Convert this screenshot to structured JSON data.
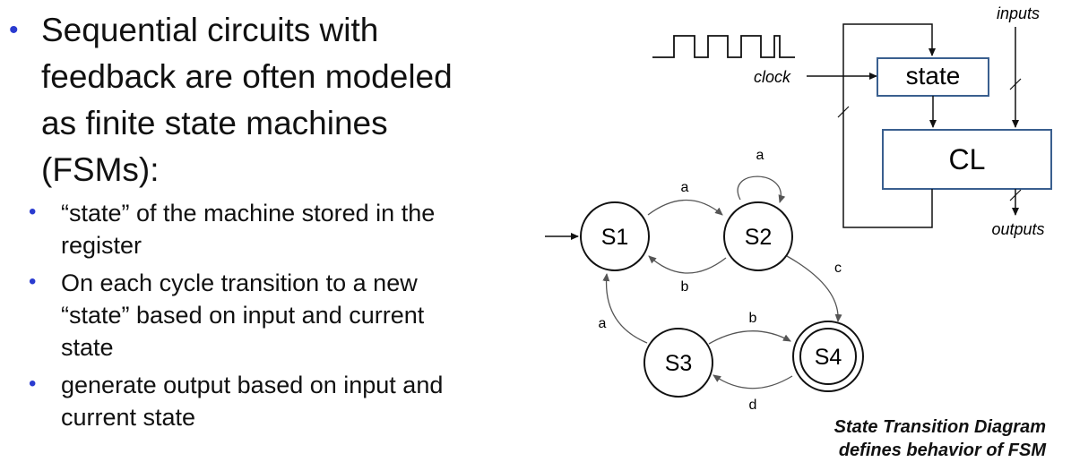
{
  "bullets": {
    "main": "Sequential circuits with\nfeedback are often modeled\nas finite state machines\n(FSMs):",
    "sub": [
      "“state” of the machine stored in the\nregister",
      "On each cycle transition to a new\n“state” based on input and current\nstate",
      "generate output based on input and\ncurrent state"
    ]
  },
  "circuit": {
    "inputs_label": "inputs",
    "clock_label": "clock",
    "state_label": "state",
    "cl_label": "CL",
    "outputs_label": "outputs"
  },
  "fsm": {
    "states": [
      "S1",
      "S2",
      "S3",
      "S4"
    ],
    "transitions": {
      "s1_s2": "a",
      "s2_s2": "a",
      "s2_s1": "b",
      "s2_s4": "c",
      "s3_s1": "a",
      "s3_s4": "b",
      "s4_s3": "d"
    }
  },
  "caption": "State Transition Diagram\ndefines behavior of FSM",
  "colors": {
    "bullet": "#2a3bd0",
    "box_stroke": "#3a5f8f"
  }
}
